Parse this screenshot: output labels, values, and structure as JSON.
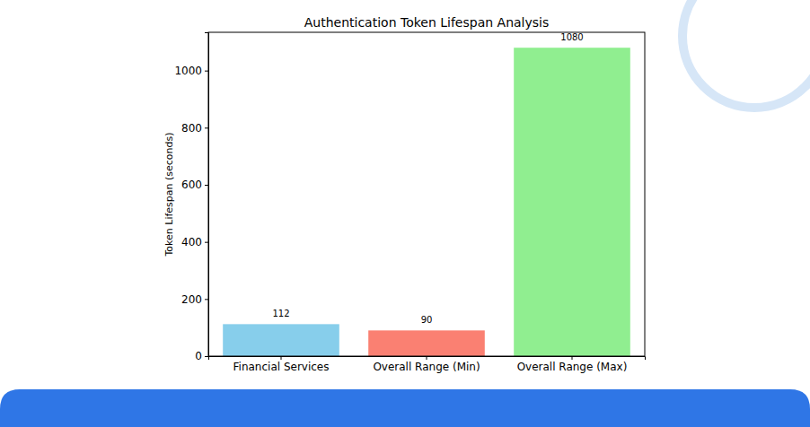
{
  "chart_data": {
    "type": "bar",
    "title": "Authentication Token Lifespan Analysis",
    "y_label": "Token Lifespan (seconds)",
    "categories": [
      "Financial Services",
      "Overall Range (Min)",
      "Overall Range (Max)"
    ],
    "values": [
      112,
      90,
      1080
    ],
    "colors": [
      "#87ceeb",
      "#fa8072",
      "#90ee90"
    ],
    "ylim": [
      0,
      1134
    ],
    "yticks": [
      0,
      200,
      400,
      600,
      800,
      1000
    ],
    "data_labels": true
  }
}
